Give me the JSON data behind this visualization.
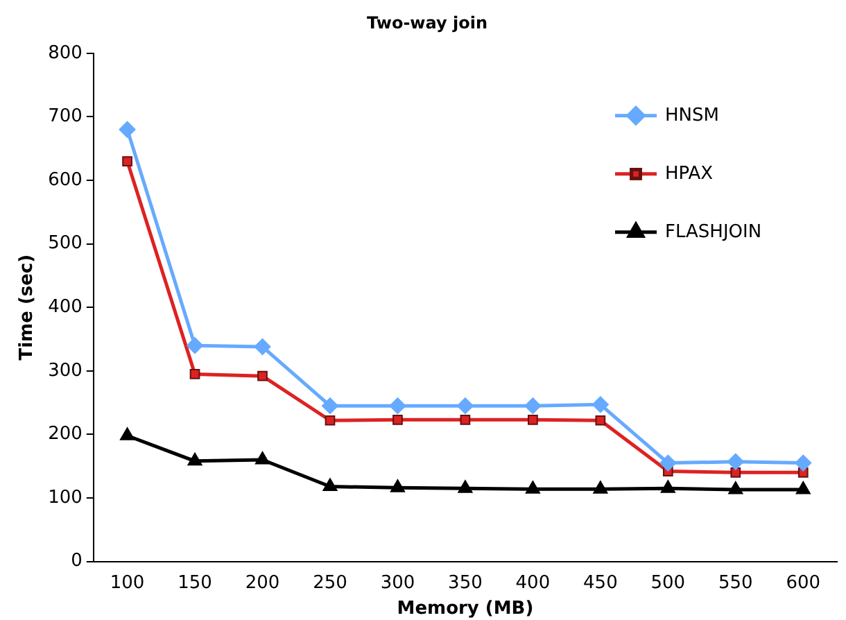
{
  "chart_data": {
    "type": "line",
    "title": "Two-way join",
    "xlabel": "Memory (MB)",
    "ylabel": "Time (sec)",
    "categories": [
      "100",
      "150",
      "200",
      "250",
      "300",
      "350",
      "400",
      "450",
      "500",
      "550",
      "600"
    ],
    "series": [
      {
        "name": "HNSM",
        "color": "#66aaff",
        "marker": "diamond",
        "values": [
          680,
          340,
          338,
          245,
          245,
          245,
          245,
          247,
          155,
          157,
          155
        ]
      },
      {
        "name": "HPAX",
        "color": "#dd2222",
        "marker": "square",
        "values": [
          630,
          295,
          292,
          222,
          223,
          223,
          223,
          222,
          142,
          140,
          140
        ]
      },
      {
        "name": "FLASHJOIN",
        "color": "#000000",
        "marker": "triangle",
        "values": [
          198,
          158,
          160,
          118,
          116,
          115,
          114,
          114,
          115,
          113,
          113
        ]
      }
    ],
    "ylim": [
      0,
      800
    ],
    "yticks": [
      0,
      100,
      200,
      300,
      400,
      500,
      600,
      700,
      800
    ],
    "grid": false,
    "legend": "right"
  }
}
